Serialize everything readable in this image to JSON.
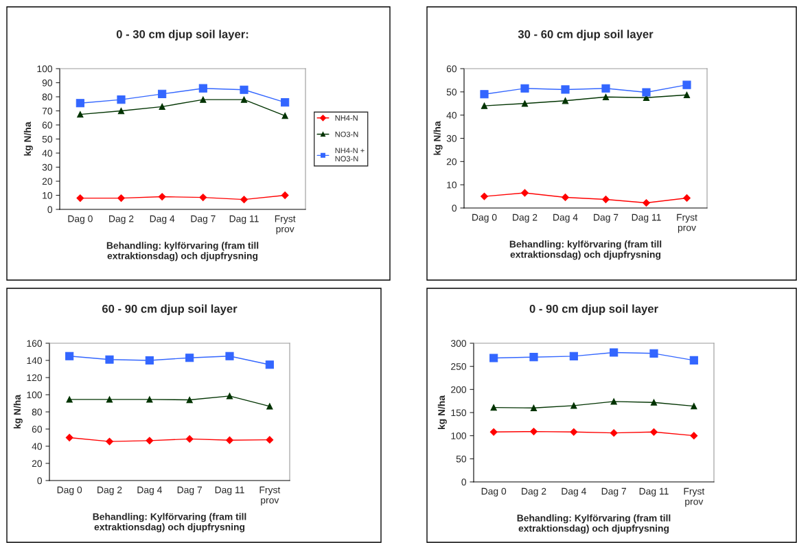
{
  "chart_data": [
    {
      "type": "line",
      "title": "0 - 30 cm djup soil layer:",
      "xlabel": "Behandling: kylförvaring (fram till\nextraktionsdag) och djupfrysning",
      "ylabel": "kg N/ha",
      "categories": [
        "Dag 0",
        "Dag 2",
        "Dag 4",
        "Dag 7",
        "Dag 11",
        "Fryst\nprov"
      ],
      "ylim": [
        0,
        100
      ],
      "yticks": [
        0,
        10,
        20,
        30,
        40,
        50,
        60,
        70,
        80,
        90,
        100
      ],
      "grid": false,
      "legend": "right",
      "series": [
        {
          "name": "NH4-N",
          "color": "#ff0000",
          "marker": "diamond",
          "values": [
            8,
            8,
            9,
            8.5,
            7,
            10
          ]
        },
        {
          "name": "NO3-N",
          "color": "#003300",
          "marker": "triangle",
          "values": [
            67.5,
            70,
            73,
            78,
            78,
            66.5
          ]
        },
        {
          "name": "NH4-N +\nNO3-N",
          "color": "#3366ff",
          "marker": "square",
          "values": [
            75.5,
            78,
            82,
            86,
            85,
            76
          ]
        }
      ]
    },
    {
      "type": "line",
      "title": "30 - 60 cm djup soil layer",
      "xlabel": "Behandling: kylförvaring (fram till\nextraktionsdag) och djupfrysning",
      "ylabel": "kg N/ha",
      "categories": [
        "Dag 0",
        "Dag 2",
        "Dag 4",
        "Dag 7",
        "Dag 11",
        "Fryst\nprov"
      ],
      "ylim": [
        0,
        60
      ],
      "yticks": [
        0,
        10,
        20,
        30,
        40,
        50,
        60
      ],
      "grid": false,
      "series": [
        {
          "color": "#ff0000",
          "marker": "diamond",
          "values": [
            5,
            6.5,
            4.6,
            3.7,
            2.2,
            4.3
          ]
        },
        {
          "color": "#003300",
          "marker": "triangle",
          "values": [
            44,
            45,
            46.2,
            47.8,
            47.5,
            48.7
          ]
        },
        {
          "color": "#3366ff",
          "marker": "square",
          "values": [
            49,
            51.5,
            51,
            51.5,
            49.8,
            53
          ]
        }
      ]
    },
    {
      "type": "line",
      "title": "60 - 90 cm djup soil layer",
      "xlabel": "Behandling: Kylförvaring (fram till\nextraktionsdag) och djupfrysning",
      "ylabel": "kg N/ha",
      "categories": [
        "Dag 0",
        "Dag 2",
        "Dag 4",
        "Dag 7",
        "Dag 11",
        "Fryst\nprov"
      ],
      "ylim": [
        0,
        160
      ],
      "yticks": [
        0,
        20,
        40,
        60,
        80,
        100,
        120,
        140,
        160
      ],
      "grid": false,
      "series": [
        {
          "color": "#ff0000",
          "marker": "diamond",
          "values": [
            50,
            45.5,
            46.5,
            48.5,
            47,
            47.5
          ]
        },
        {
          "color": "#003300",
          "marker": "triangle",
          "values": [
            94.5,
            94.5,
            94.5,
            94,
            98.5,
            86.5
          ]
        },
        {
          "color": "#3366ff",
          "marker": "square",
          "values": [
            145,
            141,
            140,
            143,
            145,
            135
          ]
        }
      ]
    },
    {
      "type": "line",
      "title": "0 - 90 cm djup soil layer",
      "xlabel": "Behandling: Kylförvaring (fram till\nextraktionsdag) och djupfrysning",
      "ylabel": "kg N/ha",
      "categories": [
        "Dag 0",
        "Dag 2",
        "Dag 4",
        "Dag 7",
        "Dag 11",
        "Fryst\nprov"
      ],
      "ylim": [
        0,
        300
      ],
      "yticks": [
        0,
        50,
        100,
        150,
        200,
        250,
        300
      ],
      "grid": false,
      "series": [
        {
          "color": "#ff0000",
          "marker": "diamond",
          "values": [
            108,
            109,
            108,
            106,
            108,
            100
          ]
        },
        {
          "color": "#003300",
          "marker": "triangle",
          "values": [
            161,
            160,
            165,
            174,
            172,
            164
          ]
        },
        {
          "color": "#3366ff",
          "marker": "square",
          "values": [
            268,
            270,
            272,
            280,
            278,
            263
          ]
        }
      ]
    }
  ]
}
